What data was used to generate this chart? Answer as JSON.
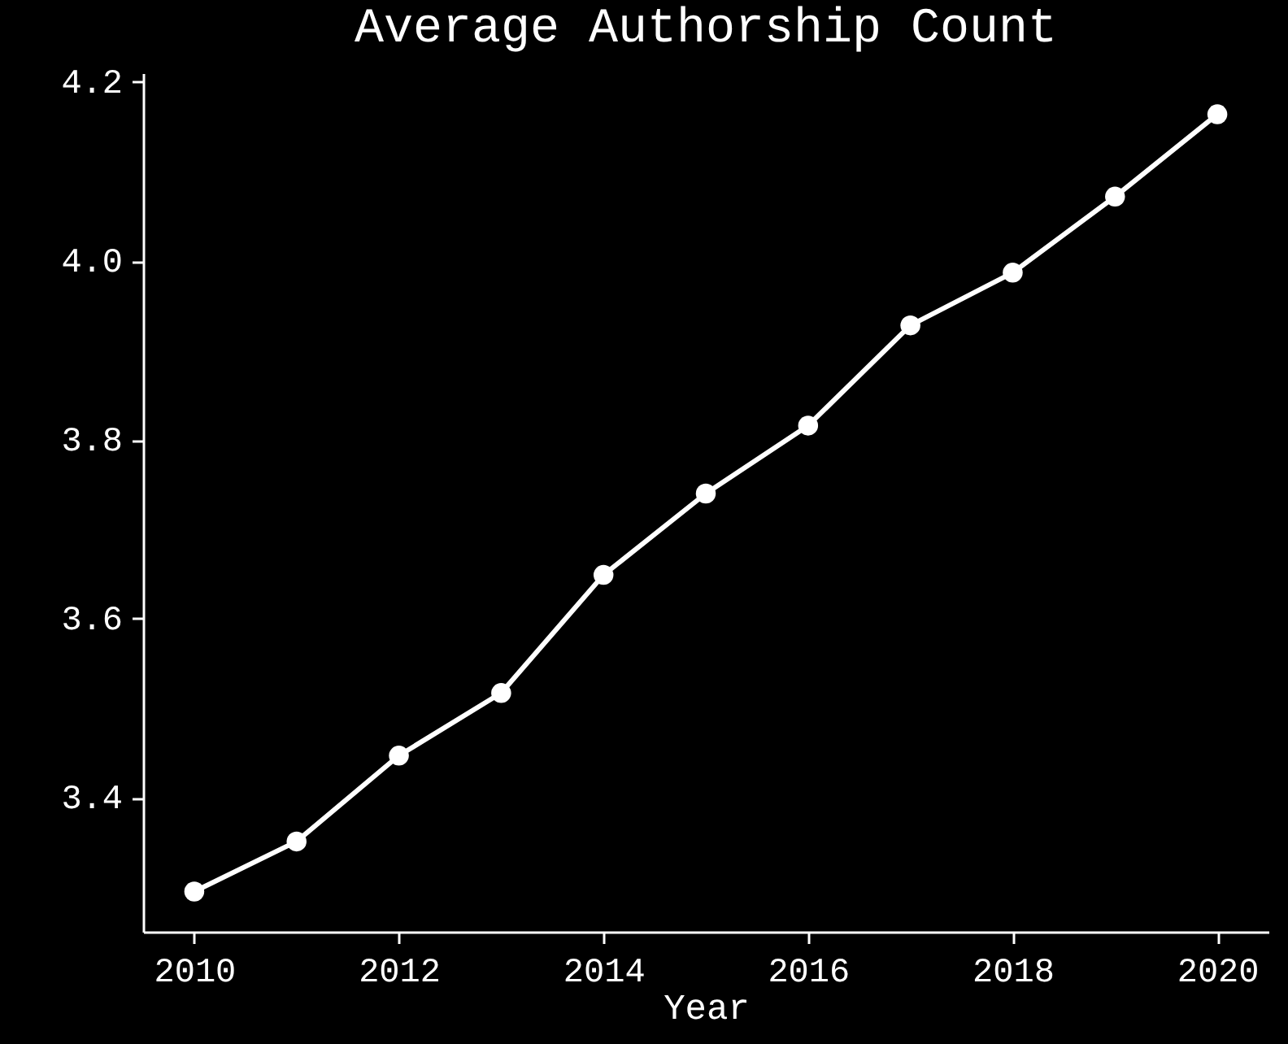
{
  "chart_data": {
    "type": "line",
    "title": "Average Authorship Count",
    "xlabel": "Year",
    "x": [
      2010,
      2011,
      2012,
      2013,
      2014,
      2015,
      2016,
      2017,
      2018,
      2019,
      2020
    ],
    "series": [
      {
        "color": "#ffffff",
        "values": [
          3.295,
          3.351,
          3.447,
          3.517,
          3.649,
          3.74,
          3.816,
          3.928,
          3.987,
          4.072,
          4.164
        ]
      }
    ],
    "xlim": [
      2009.5,
      2020.5
    ],
    "xticks": [
      2010,
      2012,
      2014,
      2016,
      2018,
      2020
    ],
    "ylim": [
      3.25,
      4.21
    ],
    "yticks": [
      3.4,
      3.6,
      3.8,
      {
        "value": 4,
        "label": "4.0"
      },
      4.2
    ],
    "marker": "circle",
    "line_style": "solid",
    "grid": false
  }
}
